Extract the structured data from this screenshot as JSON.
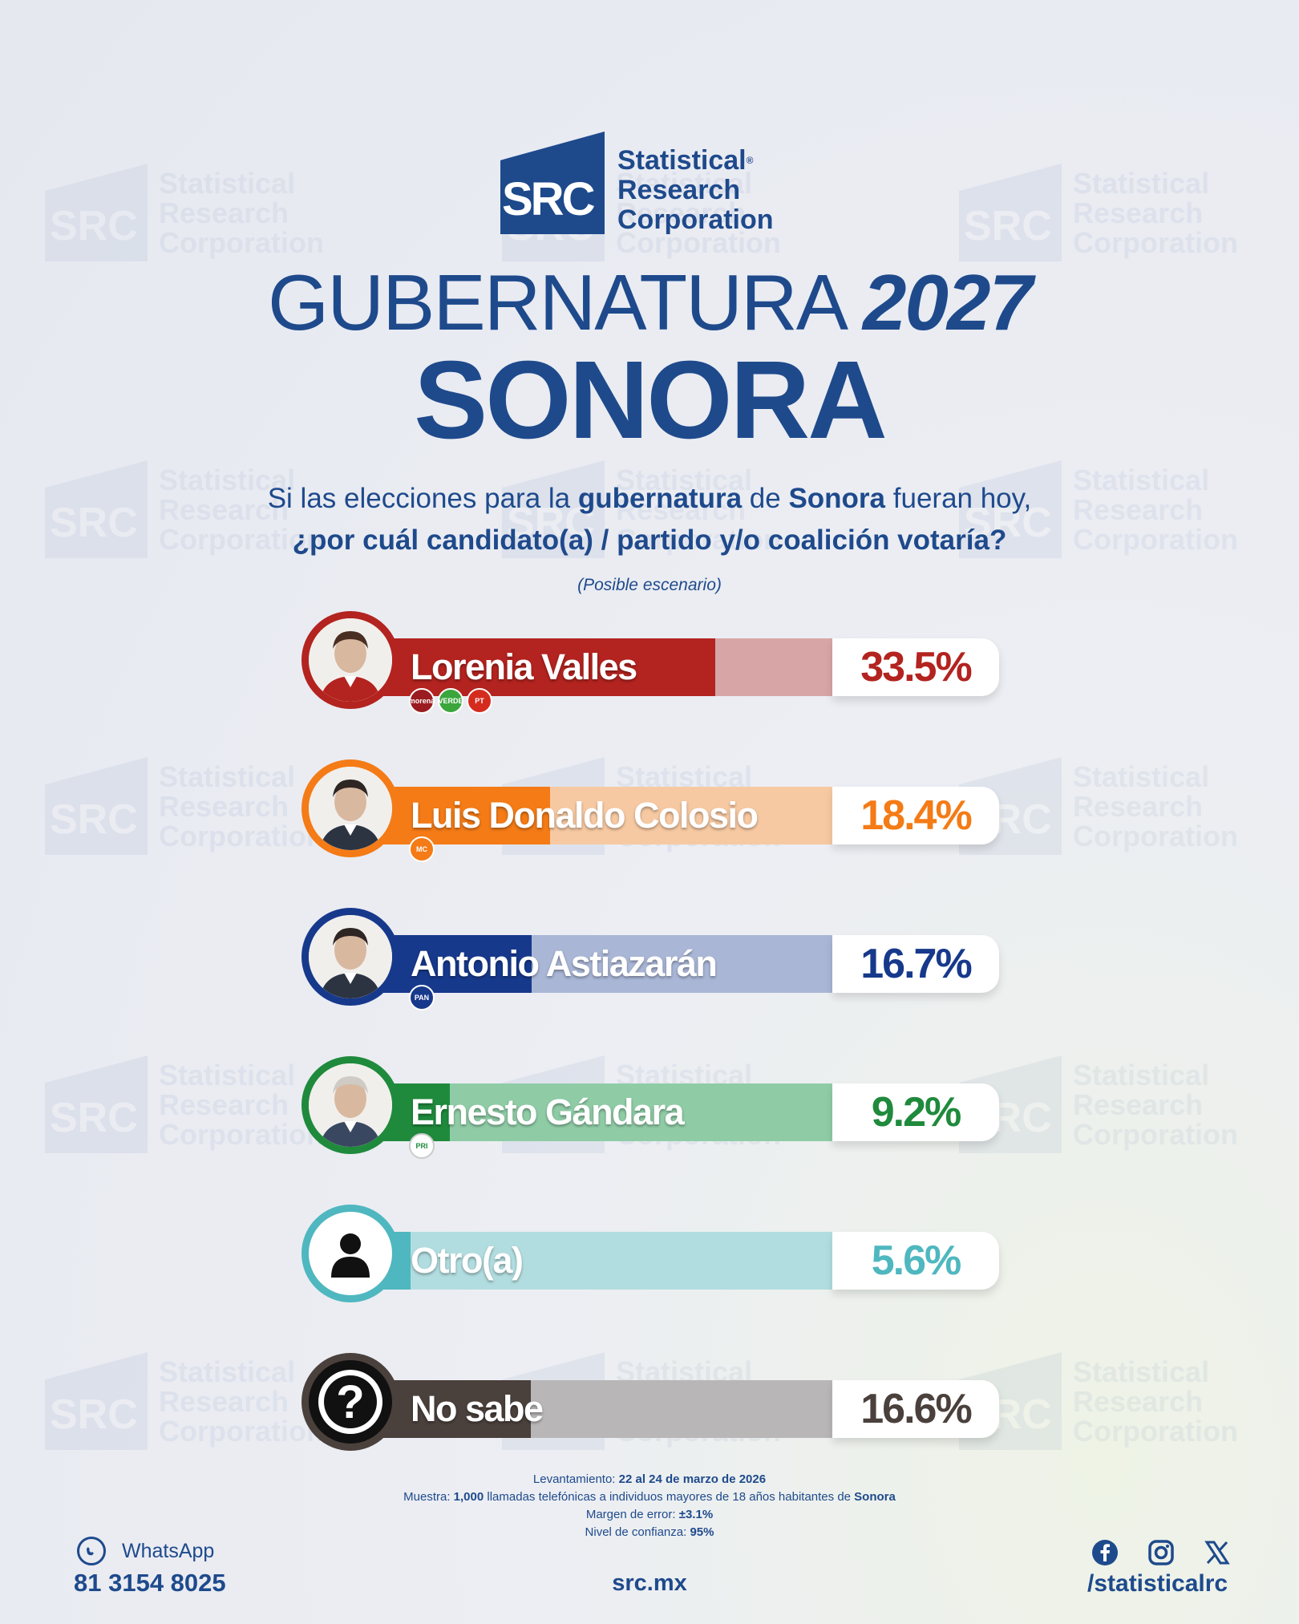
{
  "brand": {
    "mark": "SRC",
    "line1": "Statistical",
    "line2": "Research",
    "line3": "Corporation",
    "reg": "®"
  },
  "header": {
    "title_thin": "GUBERNATURA",
    "title_year": "2027",
    "state": "SONORA",
    "question_p1": "Si las elecciones para la ",
    "question_b1": "gubernatura",
    "question_p2": " de ",
    "question_b2": "Sonora",
    "question_p3": " fueran hoy,",
    "question_line2": "¿por cuál candidato(a) / partido y/o coalición votaría?",
    "scenario": "(Posible escenario)"
  },
  "chart_data": {
    "type": "bar",
    "orientation": "horizontal",
    "categories": [
      "Lorenia Valles",
      "Luis Donaldo Colosio",
      "Antonio Astiazarán",
      "Ernesto Gándara",
      "Otro(a)",
      "No sabe"
    ],
    "values": [
      33.5,
      18.4,
      16.7,
      9.2,
      5.6,
      16.6
    ],
    "labels": [
      "33.5%",
      "18.4%",
      "16.7%",
      "9.2%",
      "5.6%",
      "16.6%"
    ],
    "xlim": [
      0,
      50
    ],
    "colors": [
      "#b3231f",
      "#f47b16",
      "#17398c",
      "#1f8a3c",
      "#4fb7bf",
      "#4a403c"
    ],
    "light_colors": [
      "#d8a5a6",
      "#f7c9a2",
      "#a9b6d6",
      "#8fcca6",
      "#b2dde0",
      "#b8b6b6"
    ],
    "parties": [
      [
        "morena",
        "VERDE",
        "PT"
      ],
      [
        "MC"
      ],
      [
        "PAN"
      ],
      [
        "PRI"
      ],
      [],
      []
    ],
    "party_colors": [
      [
        "#9b1c20",
        "#3aa63c",
        "#d52b1e"
      ],
      [
        "#f47b16"
      ],
      [
        "#17398c"
      ],
      [
        "#ffffff"
      ],
      [],
      []
    ]
  },
  "footer": {
    "meth_l1_label": "Levantamiento: ",
    "meth_l1_value": "22 al 24 de marzo de 2026",
    "meth_l2_label": "Muestra: ",
    "meth_l2_value": "1,000",
    "meth_l2_rest": " llamadas telefónicas a individuos mayores de 18 años habitantes de ",
    "meth_l2_state": "Sonora",
    "meth_l3_label": "Margen de error: ",
    "meth_l3_value": "±3.1%",
    "meth_l4_label": "Nivel de confianza: ",
    "meth_l4_value": "95%",
    "whatsapp_label": "WhatsApp",
    "whatsapp_phone": "81 3154 8025",
    "site": "src.mx",
    "handle": "/statisticalrc",
    "social_icons": [
      "facebook-icon",
      "instagram-icon",
      "x-icon"
    ]
  }
}
